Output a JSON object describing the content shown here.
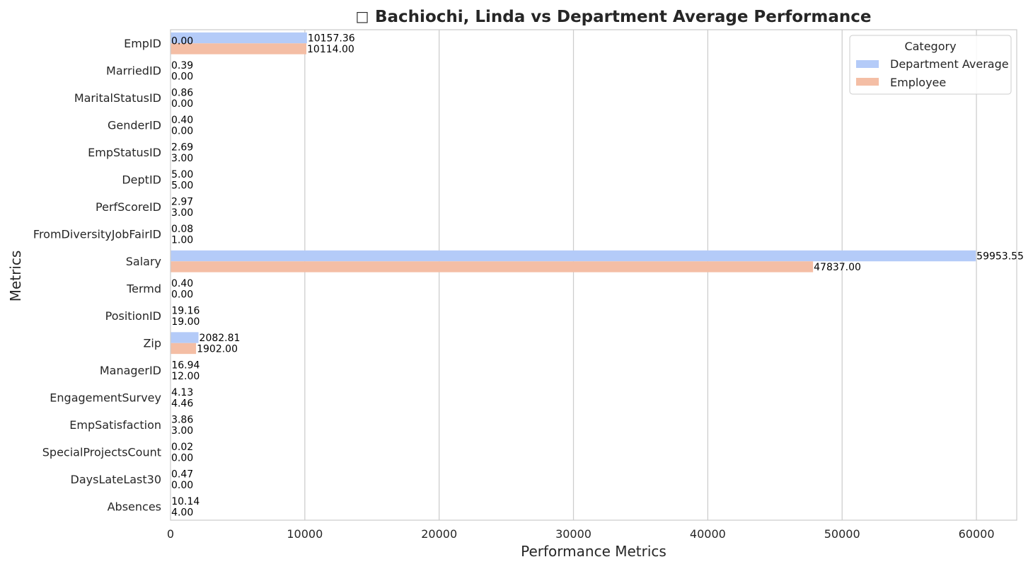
{
  "chart_data": {
    "type": "bar",
    "orientation": "horizontal",
    "title": "Bachiochi, Linda vs Department Average Performance",
    "title_icon": "emoji-glyph",
    "xlabel": "Performance Metrics",
    "ylabel": "Metrics",
    "xlim": [
      0,
      63000
    ],
    "xticks": [
      0,
      10000,
      20000,
      30000,
      40000,
      50000,
      60000
    ],
    "grid": "vertical",
    "categories": [
      "EmpID",
      "MarriedID",
      "MaritalStatusID",
      "GenderID",
      "EmpStatusID",
      "DeptID",
      "PerfScoreID",
      "FromDiversityJobFairID",
      "Salary",
      "Termd",
      "PositionID",
      "Zip",
      "ManagerID",
      "EngagementSurvey",
      "EmpSatisfaction",
      "SpecialProjectsCount",
      "DaysLateLast30",
      "Absences"
    ],
    "series": [
      {
        "name": "Department Average",
        "color": "#b4cbf8",
        "values": [
          10157.36,
          0.39,
          0.86,
          0.4,
          2.69,
          5.0,
          2.97,
          0.08,
          59953.55,
          0.4,
          19.16,
          2082.81,
          16.94,
          4.13,
          3.86,
          0.02,
          0.47,
          10.14
        ],
        "labels": [
          "10157.36",
          "0.39",
          "0.86",
          "0.40",
          "2.69",
          "5.00",
          "2.97",
          "0.08",
          "59953.55",
          "0.40",
          "19.16",
          "2082.81",
          "16.94",
          "4.13",
          "3.86",
          "0.02",
          "0.47",
          "10.14"
        ]
      },
      {
        "name": "Employee",
        "color": "#f4bea5",
        "values": [
          10114.0,
          0.0,
          0.0,
          0.0,
          3.0,
          5.0,
          3.0,
          1.0,
          47837.0,
          0.0,
          19.0,
          1902.0,
          12.0,
          4.46,
          3.0,
          0.0,
          0.0,
          4.0
        ],
        "labels": [
          "10114.00",
          "0.00",
          "0.00",
          "0.00",
          "3.00",
          "5.00",
          "3.00",
          "1.00",
          "47837.00",
          "0.00",
          "19.00",
          "1902.00",
          "12.00",
          "4.46",
          "3.00",
          "0.00",
          "0.00",
          "4.00"
        ]
      }
    ],
    "extra_annotations": [
      {
        "text": "0.00",
        "category": "EmpID"
      }
    ],
    "legend": {
      "title": "Category",
      "placement": "top-right",
      "entries": [
        "Department Average",
        "Employee"
      ]
    }
  }
}
